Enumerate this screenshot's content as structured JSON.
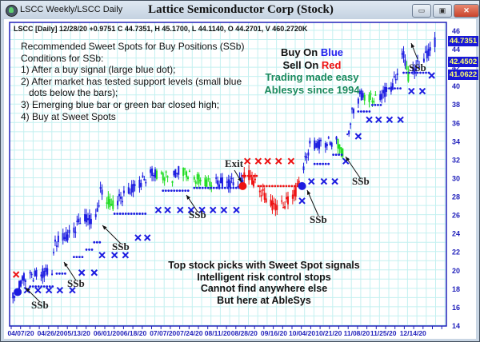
{
  "window": {
    "title_left": "LSCC Weekly/LSCC Daily",
    "title": "Lattice Semiconductor Corp (Stock)",
    "buttons": {
      "minimize": "▭",
      "maximize": "▣",
      "close": "✕"
    }
  },
  "chart_header": "LSCC [Daily] 12/28/20 +0.9751 C 44.7351, H 45.1700, L 44.1140, O 44.2701, V 460.2720K",
  "conditions": [
    "Recommended Sweet Spots for Buy Positions (SSb)",
    "Conditions for SSb:",
    "1) After a buy signal (large blue dot);",
    "2) After market has tested support levels (small blue",
    "   dots below the bars);",
    "3) Emerging blue bar or green bar closed high;",
    "4) Buy at Sweet Spots"
  ],
  "slogan": {
    "buy_prefix": "Buy On ",
    "buy_word": "Blue",
    "sell_prefix": "Sell On ",
    "sell_word": "Red",
    "line3": "Trading made easy",
    "line4": "Ablesys since 1994"
  },
  "promo": [
    "Top stock picks with Sweet Spot signals",
    "Intelligent risk control stops",
    "Cannot find anywhere else",
    "But here at AbleSys"
  ],
  "annotations": {
    "ssb": "SSb",
    "exit": "Exit"
  },
  "price_badges": [
    "44.7351",
    "42.4502",
    "41.0622"
  ],
  "colors": {
    "up": "#1c1ce0",
    "pullback": "#22dd22",
    "sell": "#ee1111",
    "grid": "#c4f0f0",
    "axis": "#2222bb",
    "slogan_green": "#1b8a5e",
    "badge_bg": "#1818d8",
    "badge_text": "#ffff70"
  },
  "chart_data": {
    "type": "candlestick",
    "ylim": [
      14,
      46
    ],
    "y_ticks": [
      14,
      16,
      18,
      20,
      22,
      24,
      26,
      28,
      30,
      32,
      34,
      36,
      38,
      40,
      42,
      44,
      46
    ],
    "x_tick_labels": [
      "04/07/20",
      "04/26/20",
      "05/13/20",
      "06/01/20",
      "06/18/20",
      "07/07/20",
      "07/24/20",
      "08/11/20",
      "08/28/20",
      "09/16/20",
      "10/04/20",
      "10/21/20",
      "11/08/20",
      "11/25/20",
      "12/14/20"
    ],
    "grid": true,
    "price_path": [
      [
        "2020-04-02",
        17
      ],
      [
        "2020-04-09",
        19.2
      ],
      [
        "2020-04-19",
        19.5
      ],
      [
        "2020-04-27",
        20
      ],
      [
        "2020-04-29",
        23
      ],
      [
        "2020-05-10",
        24
      ],
      [
        "2020-05-15",
        25.5
      ],
      [
        "2020-05-25",
        25.5
      ],
      [
        "2020-05-28",
        28.5
      ],
      [
        "2020-06-04",
        27
      ],
      [
        "2020-06-15",
        28.5
      ],
      [
        "2020-06-30",
        30.5
      ],
      [
        "2020-07-13",
        30
      ],
      [
        "2020-07-18",
        31
      ],
      [
        "2020-07-26",
        30
      ],
      [
        "2020-08-05",
        29.5
      ],
      [
        "2020-08-25",
        29.5
      ],
      [
        "2020-08-30",
        30.5
      ],
      [
        "2020-09-10",
        28
      ],
      [
        "2020-09-15",
        27
      ],
      [
        "2020-09-22",
        27
      ],
      [
        "2020-09-30",
        28.5
      ],
      [
        "2020-10-09",
        33.5
      ],
      [
        "2020-10-26",
        34
      ],
      [
        "2020-10-31",
        32.5
      ],
      [
        "2020-11-05",
        37
      ],
      [
        "2020-11-10",
        39
      ],
      [
        "2020-11-20",
        38.5
      ],
      [
        "2020-12-01",
        40
      ],
      [
        "2020-12-08",
        43.5
      ],
      [
        "2020-12-11",
        41
      ],
      [
        "2020-12-21",
        43
      ],
      [
        "2020-12-28",
        44.7
      ]
    ],
    "sell_period": [
      "2020-08-28",
      "2020-10-03"
    ],
    "support_stops": [
      [
        "2020-04-13",
        "2020-04-29",
        18.2,
        "buy"
      ],
      [
        "2020-04-30",
        "2020-05-06",
        19.6,
        "buy"
      ],
      [
        "2020-05-11",
        "2020-05-18",
        21.4,
        "buy"
      ],
      [
        "2020-05-19",
        "2020-05-24",
        22.2,
        "buy"
      ],
      [
        "2020-05-24",
        "2020-05-29",
        23.0,
        "buy"
      ],
      [
        "2020-06-06",
        "2020-06-26",
        26.1,
        "buy"
      ],
      [
        "2020-07-07",
        "2020-07-24",
        28.6,
        "buy"
      ],
      [
        "2020-07-27",
        "2020-08-25",
        28.9,
        "buy"
      ],
      [
        "2020-08-27",
        "2020-09-05",
        30.2,
        "sell"
      ],
      [
        "2020-09-06",
        "2020-10-02",
        29.1,
        "sell"
      ],
      [
        "2020-10-12",
        "2020-10-22",
        31.5,
        "buy"
      ],
      [
        "2020-10-24",
        "2020-10-31",
        32.5,
        "buy"
      ],
      [
        "2020-11-09",
        "2020-11-17",
        37.2,
        "buy"
      ],
      [
        "2020-11-18",
        "2020-11-24",
        37.9,
        "buy"
      ],
      [
        "2020-11-27",
        "2020-12-06",
        39.7,
        "buy"
      ],
      [
        "2020-12-08",
        "2020-12-25",
        41.4,
        "buy"
      ]
    ],
    "x_markers": [
      [
        "2020-04-04",
        19.5,
        "sell"
      ],
      [
        "2020-04-11",
        17.8,
        "buy"
      ],
      [
        "2020-04-18",
        17.8,
        "buy"
      ],
      [
        "2020-04-25",
        17.8,
        "buy"
      ],
      [
        "2020-05-02",
        17.8,
        "buy"
      ],
      [
        "2020-05-10",
        17.8,
        "buy"
      ],
      [
        "2020-05-16",
        19.7,
        "buy"
      ],
      [
        "2020-05-24",
        19.7,
        "buy"
      ],
      [
        "2020-05-29",
        21.6,
        "buy"
      ],
      [
        "2020-06-06",
        21.6,
        "buy"
      ],
      [
        "2020-06-13",
        21.6,
        "buy"
      ],
      [
        "2020-06-21",
        23.5,
        "buy"
      ],
      [
        "2020-06-27",
        23.5,
        "buy"
      ],
      [
        "2020-07-04",
        26.5,
        "buy"
      ],
      [
        "2020-07-10",
        26.5,
        "buy"
      ],
      [
        "2020-07-18",
        26.5,
        "buy"
      ],
      [
        "2020-07-25",
        26.5,
        "buy"
      ],
      [
        "2020-08-01",
        26.5,
        "buy"
      ],
      [
        "2020-08-08",
        26.5,
        "buy"
      ],
      [
        "2020-08-15",
        26.5,
        "buy"
      ],
      [
        "2020-08-23",
        26.5,
        "buy"
      ],
      [
        "2020-08-30",
        31.8,
        "sell"
      ],
      [
        "2020-09-06",
        31.8,
        "sell"
      ],
      [
        "2020-09-12",
        31.8,
        "sell"
      ],
      [
        "2020-09-19",
        31.8,
        "sell"
      ],
      [
        "2020-09-27",
        31.8,
        "sell"
      ],
      [
        "2020-10-04",
        27.5,
        "buy"
      ],
      [
        "2020-10-10",
        29.6,
        "buy"
      ],
      [
        "2020-10-18",
        29.6,
        "buy"
      ],
      [
        "2020-10-25",
        29.6,
        "buy"
      ],
      [
        "2020-11-01",
        31.8,
        "buy"
      ],
      [
        "2020-11-09",
        34.5,
        "buy"
      ],
      [
        "2020-11-16",
        36.3,
        "buy"
      ],
      [
        "2020-11-22",
        36.3,
        "buy"
      ],
      [
        "2020-11-29",
        36.3,
        "buy"
      ],
      [
        "2020-12-06",
        36.3,
        "buy"
      ],
      [
        "2020-12-13",
        39.4,
        "buy"
      ],
      [
        "2020-12-20",
        39.4,
        "buy"
      ],
      [
        "2020-12-26",
        41.1,
        "buy"
      ]
    ],
    "signals": [
      [
        "2020-04-05",
        17.6,
        "buy"
      ],
      [
        "2020-08-27",
        29.1,
        "sell"
      ],
      [
        "2020-10-04",
        29.1,
        "buy"
      ]
    ]
  }
}
